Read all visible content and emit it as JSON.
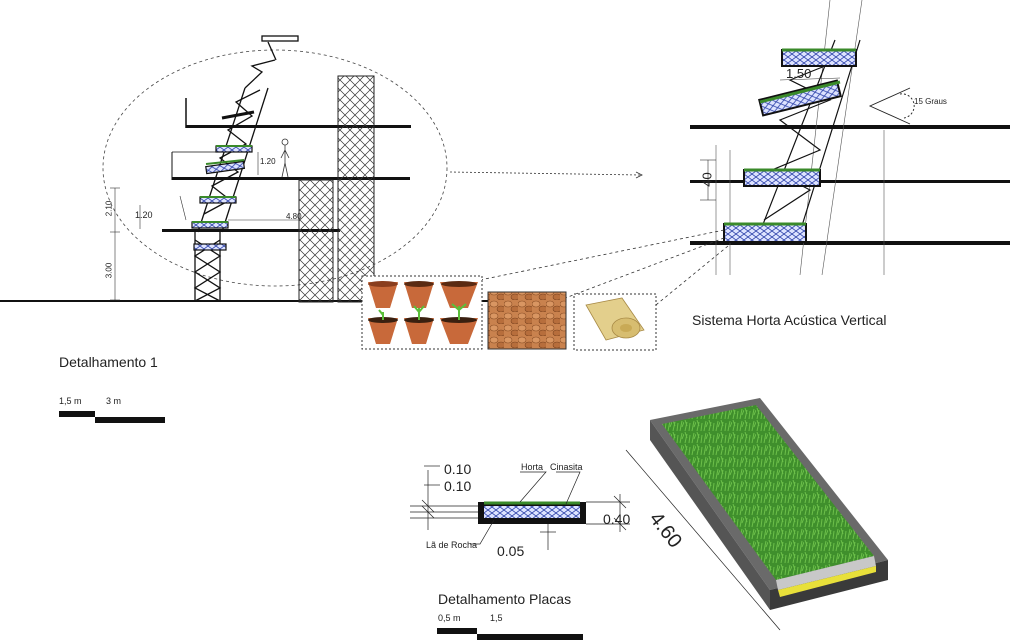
{
  "titles": {
    "detail1": "Detalhamento 1",
    "system": "Sistema Horta Acústica Vertical",
    "plates": "Detalhamento Placas"
  },
  "scale1": {
    "a": "1,5 m",
    "b": "3 m"
  },
  "scale2": {
    "a": "0,5 m",
    "b": "1,5"
  },
  "section_dims": {
    "d120a": "1.20",
    "d120b": "1.20",
    "d210": "2.10",
    "d300": "3.00",
    "d480": "4.80"
  },
  "zoom_dims": {
    "d150": "1.50",
    "d40": "40",
    "angle": "15 Graus"
  },
  "plate_dims": {
    "d010a": "0.10",
    "d010b": "0.10",
    "d040": "0.40",
    "d005": "0.05",
    "d460": "4.60"
  },
  "plate_labels": {
    "horta": "Horta",
    "cinasita": "Cinasita",
    "la_de_rocha": "Lã de Rocha"
  },
  "colors": {
    "green": "#3a8a2a",
    "blue": "#2a3fa8",
    "black": "#111111",
    "terracotta": "#c8693a",
    "clay": "#b8683a",
    "wool": "#e3cf8c"
  }
}
